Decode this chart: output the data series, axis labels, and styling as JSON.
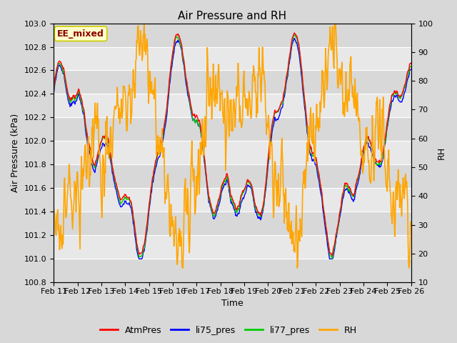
{
  "title": "Air Pressure and RH",
  "xlabel": "Time",
  "ylabel_left": "Air Pressure (kPa)",
  "ylabel_right": "RH",
  "ylim_left": [
    100.8,
    103.0
  ],
  "ylim_right": [
    10,
    100
  ],
  "yticks_left": [
    100.8,
    101.0,
    101.2,
    101.4,
    101.6,
    101.8,
    102.0,
    102.2,
    102.4,
    102.6,
    102.8,
    103.0
  ],
  "yticks_right": [
    10,
    20,
    30,
    40,
    50,
    60,
    70,
    80,
    90,
    100
  ],
  "xtick_labels": [
    "Feb 11",
    "Feb 12",
    "Feb 13",
    "Feb 14",
    "Feb 15",
    "Feb 16",
    "Feb 17",
    "Feb 18",
    "Feb 19",
    "Feb 20",
    "Feb 21",
    "Feb 22",
    "Feb 23",
    "Feb 24",
    "Feb 25",
    "Feb 26"
  ],
  "annotation_text": "EE_mixed",
  "annotation_color": "#8B0000",
  "annotation_bg": "#FFFFCC",
  "annotation_border": "#CCCC00",
  "colors": {
    "AtmPres": "#FF0000",
    "li75_pres": "#0000FF",
    "li77_pres": "#00CC00",
    "RH": "#FFA500"
  },
  "legend_labels": [
    "AtmPres",
    "li75_pres",
    "li77_pres",
    "RH"
  ],
  "bg_color": "#D8D8D8",
  "plot_bg_light": "#E8E8E8",
  "plot_bg_dark": "#D0D0D0",
  "grid_color": "#FFFFFF",
  "title_fontsize": 11,
  "axis_fontsize": 9,
  "tick_fontsize": 8,
  "legend_fontsize": 9
}
